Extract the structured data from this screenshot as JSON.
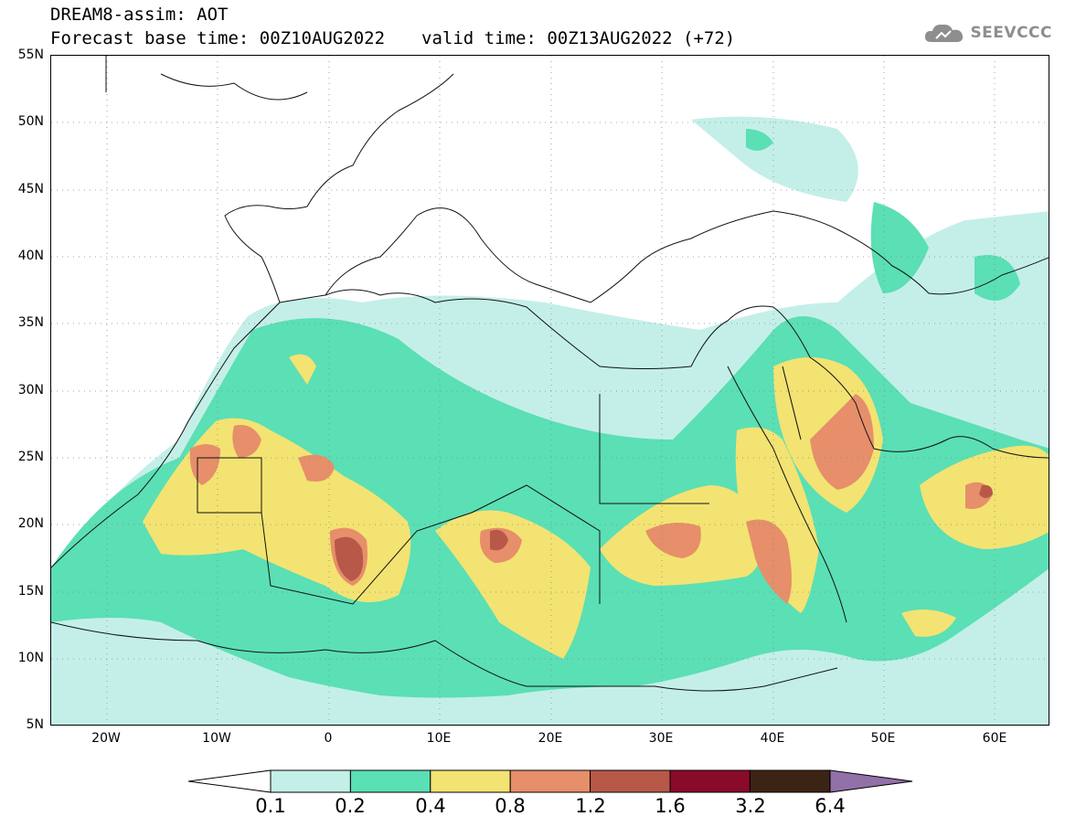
{
  "title": {
    "line1": "DREAM8-assim: AOT",
    "base_time": "Forecast base time: 00Z10AUG2022",
    "valid_time": "valid time: 00Z13AUG2022 (+72)"
  },
  "logo": {
    "text": "SEEVCCC",
    "icon": "cloud-icon"
  },
  "map": {
    "variable": "AOT",
    "projection": "cylindrical",
    "lon_range": [
      -25,
      65
    ],
    "lat_range": [
      5,
      55
    ],
    "lat_ticks": [
      "55N",
      "50N",
      "45N",
      "40N",
      "35N",
      "30N",
      "25N",
      "20N",
      "15N",
      "10N",
      "5N"
    ],
    "lon_ticks": [
      "20W",
      "10W",
      "0",
      "10E",
      "20E",
      "30E",
      "40E",
      "50E",
      "60E"
    ],
    "grid": "dotted"
  },
  "legend": {
    "levels": [
      "0.1",
      "0.2",
      "0.4",
      "0.8",
      "1.2",
      "1.6",
      "3.2",
      "6.4"
    ],
    "colors": [
      "#c4efe9",
      "#5bdfb5",
      "#f3e372",
      "#e68f6a",
      "#b85849",
      "#8a0a2a",
      "#3c2414",
      "#9270a8"
    ]
  },
  "colors": {
    "c1": "#c4efe9",
    "c2": "#5bdfb5",
    "c3": "#f3e372",
    "c4": "#e68f6a",
    "c5": "#b85849"
  }
}
